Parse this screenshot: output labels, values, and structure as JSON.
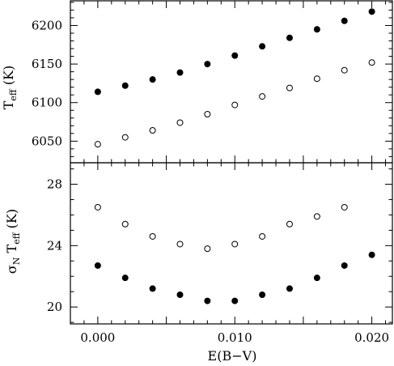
{
  "chart_data": [
    {
      "type": "scatter",
      "ylabel": {
        "main": "T",
        "sub": "eff",
        "unit": " (K)"
      },
      "xlim": [
        -0.002,
        0.0215
      ],
      "ylim": [
        6022,
        6232
      ],
      "yticks": [
        6050,
        6100,
        6150,
        6200
      ],
      "yticklabels": [
        "6050",
        "6100",
        "6150",
        "6200"
      ],
      "x": [
        0.0,
        0.002,
        0.004,
        0.006,
        0.008,
        0.01,
        0.012,
        0.014,
        0.016,
        0.018,
        0.02
      ],
      "series": [
        {
          "marker": "filled",
          "values": [
            6114,
            6122,
            6130,
            6139,
            6150,
            6161,
            6173,
            6184,
            6195,
            6206,
            6218
          ]
        },
        {
          "marker": "open",
          "values": [
            6046,
            6055,
            6064,
            6074,
            6085,
            6097,
            6108,
            6119,
            6131,
            6142,
            6152
          ]
        }
      ],
      "grid": false,
      "show_x_ticklabels": false
    },
    {
      "type": "scatter",
      "xlabel": "E(B−V)",
      "ylabel": {
        "main": "σ",
        "sub1": "N",
        "mid": " T",
        "sub2": "eff",
        "unit": " (K)"
      },
      "xlim": [
        -0.002,
        0.0215
      ],
      "ylim": [
        18.9,
        29.4
      ],
      "xticks": [
        0.0,
        0.01,
        0.02
      ],
      "xticklabels": [
        "0.000",
        "0.010",
        "0.020"
      ],
      "yticks": [
        20,
        24,
        28
      ],
      "yticklabels": [
        "20",
        "24",
        "28"
      ],
      "x": [
        0.0,
        0.002,
        0.004,
        0.006,
        0.008,
        0.01,
        0.012,
        0.014,
        0.016,
        0.018,
        0.02
      ],
      "series": [
        {
          "marker": "open",
          "values": [
            26.5,
            25.4,
            24.6,
            24.1,
            23.8,
            24.1,
            24.6,
            25.4,
            25.9,
            26.5,
            null
          ]
        },
        {
          "marker": "filled",
          "values": [
            22.7,
            21.9,
            21.2,
            20.8,
            20.4,
            20.4,
            20.8,
            21.2,
            21.9,
            22.7,
            23.4
          ]
        }
      ],
      "grid": false
    }
  ]
}
